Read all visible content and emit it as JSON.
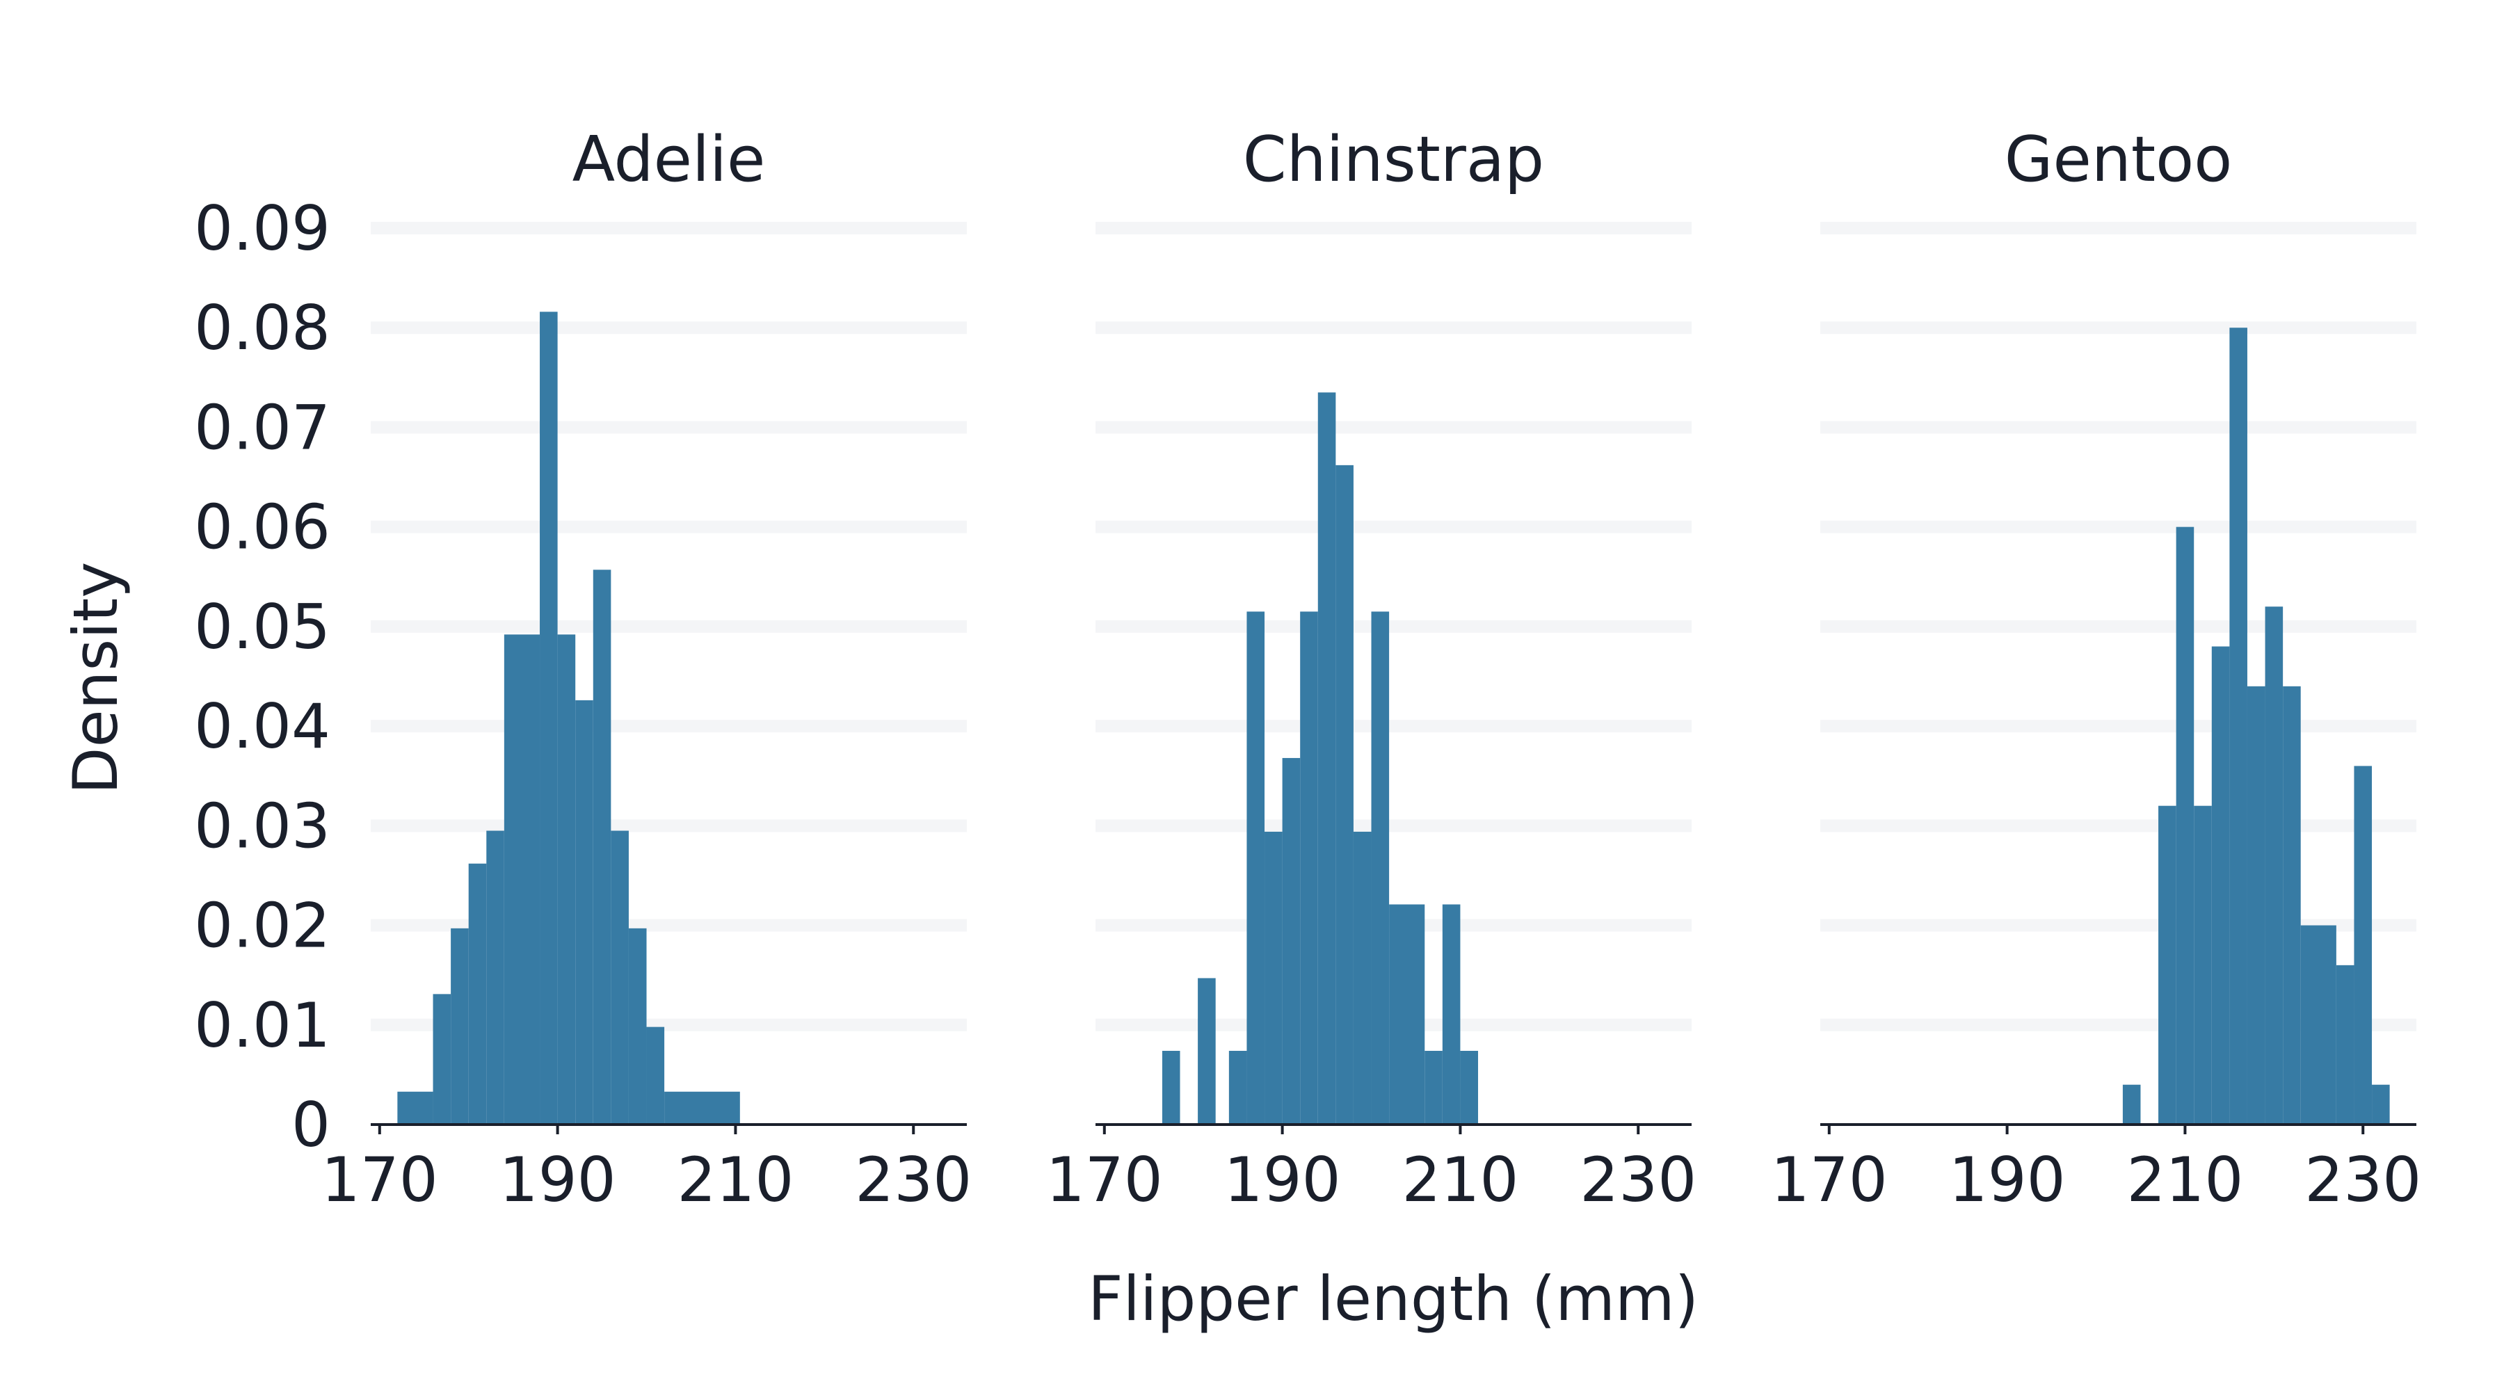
{
  "chart_data": {
    "type": "bar",
    "subtype": "histogram",
    "xlabel": "Flipper length (mm)",
    "ylabel": "Density",
    "xlim": [
      169,
      236
    ],
    "ylim": [
      0,
      0.09
    ],
    "x_ticks": [
      170,
      190,
      210,
      230
    ],
    "y_ticks": [
      0,
      0.01,
      0.02,
      0.03,
      0.04,
      0.05,
      0.06,
      0.07,
      0.08,
      0.09
    ],
    "y_tick_labels": [
      "0",
      "0.01",
      "0.02",
      "0.03",
      "0.04",
      "0.05",
      "0.06",
      "0.07",
      "0.08",
      "0.09"
    ],
    "grid": "horizontal",
    "bar_color": "#377ba4",
    "panels": [
      {
        "title": "Adelie",
        "bin_width": 4,
        "bins": [
          {
            "x0": 172,
            "x1": 176,
            "density": 0.0033
          },
          {
            "x0": 176,
            "x1": 178,
            "density": 0.0131
          },
          {
            "x0": 178,
            "x1": 180,
            "density": 0.0197
          },
          {
            "x0": 180,
            "x1": 182,
            "density": 0.0262
          },
          {
            "x0": 182,
            "x1": 184,
            "density": 0.0295
          },
          {
            "x0": 184,
            "x1": 188,
            "density": 0.0492
          },
          {
            "x0": 188,
            "x1": 190,
            "density": 0.0816
          },
          {
            "x0": 190,
            "x1": 192,
            "density": 0.0492
          },
          {
            "x0": 192,
            "x1": 194,
            "density": 0.0426
          },
          {
            "x0": 194,
            "x1": 196,
            "density": 0.0557
          },
          {
            "x0": 196,
            "x1": 198,
            "density": 0.0295
          },
          {
            "x0": 198,
            "x1": 200,
            "density": 0.0197
          },
          {
            "x0": 200,
            "x1": 202,
            "density": 0.0098
          },
          {
            "x0": 202,
            "x1": 210.5,
            "density": 0.0033
          }
        ]
      },
      {
        "title": "Chinstrap",
        "bin_width": 2,
        "bins": [
          {
            "x0": 176.5,
            "x1": 178.5,
            "density": 0.0074
          },
          {
            "x0": 180.5,
            "x1": 182.5,
            "density": 0.0147
          },
          {
            "x0": 184,
            "x1": 186,
            "density": 0.0074
          },
          {
            "x0": 186,
            "x1": 188,
            "density": 0.0515
          },
          {
            "x0": 188,
            "x1": 190,
            "density": 0.0294
          },
          {
            "x0": 190,
            "x1": 192,
            "density": 0.0368
          },
          {
            "x0": 192,
            "x1": 194,
            "density": 0.0515
          },
          {
            "x0": 194,
            "x1": 196,
            "density": 0.0735
          },
          {
            "x0": 196,
            "x1": 198,
            "density": 0.0662
          },
          {
            "x0": 198,
            "x1": 200,
            "density": 0.0294
          },
          {
            "x0": 200,
            "x1": 202,
            "density": 0.0515
          },
          {
            "x0": 202,
            "x1": 206,
            "density": 0.0221
          },
          {
            "x0": 206,
            "x1": 208,
            "density": 0.0074
          },
          {
            "x0": 208,
            "x1": 210,
            "density": 0.0221
          },
          {
            "x0": 210,
            "x1": 212,
            "density": 0.0074
          }
        ]
      },
      {
        "title": "Gentoo",
        "bin_width": 2,
        "bins": [
          {
            "x0": 203,
            "x1": 205,
            "density": 0.004
          },
          {
            "x0": 207,
            "x1": 209,
            "density": 0.032
          },
          {
            "x0": 209,
            "x1": 211,
            "density": 0.06
          },
          {
            "x0": 211,
            "x1": 213,
            "density": 0.032
          },
          {
            "x0": 213,
            "x1": 215,
            "density": 0.048
          },
          {
            "x0": 215,
            "x1": 217,
            "density": 0.08
          },
          {
            "x0": 217,
            "x1": 219,
            "density": 0.044
          },
          {
            "x0": 219,
            "x1": 221,
            "density": 0.052
          },
          {
            "x0": 221,
            "x1": 223,
            "density": 0.044
          },
          {
            "x0": 223,
            "x1": 227,
            "density": 0.02
          },
          {
            "x0": 227,
            "x1": 229,
            "density": 0.016
          },
          {
            "x0": 229,
            "x1": 231,
            "density": 0.036
          },
          {
            "x0": 231,
            "x1": 233,
            "density": 0.004
          }
        ]
      }
    ]
  }
}
